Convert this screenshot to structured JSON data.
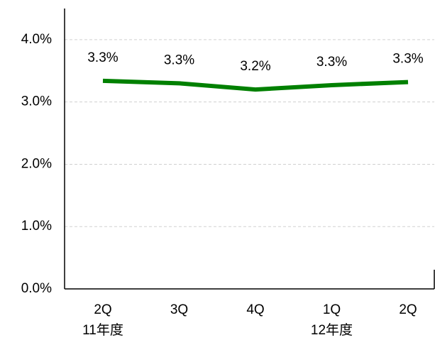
{
  "chart_data": {
    "type": "line",
    "categories": [
      "2Q",
      "3Q",
      "4Q",
      "1Q",
      "2Q"
    ],
    "fiscal_years": [
      "11年度",
      null,
      null,
      "12年度",
      null
    ],
    "series": [
      {
        "color": "#008000",
        "values": [
          3.34,
          3.3,
          3.2,
          3.27,
          3.32
        ],
        "value_labels": [
          "3.3%",
          "3.3%",
          "3.2%",
          "3.3%",
          "3.3%"
        ]
      }
    ],
    "ylim": [
      0,
      4.5
    ],
    "yticks": [
      {
        "value": 0,
        "label": "0.0%"
      },
      {
        "value": 1,
        "label": "1.0%"
      },
      {
        "value": 2,
        "label": "2.0%"
      },
      {
        "value": 3,
        "label": "3.0%"
      },
      {
        "value": 4,
        "label": "4.0%"
      }
    ],
    "grid": true
  }
}
